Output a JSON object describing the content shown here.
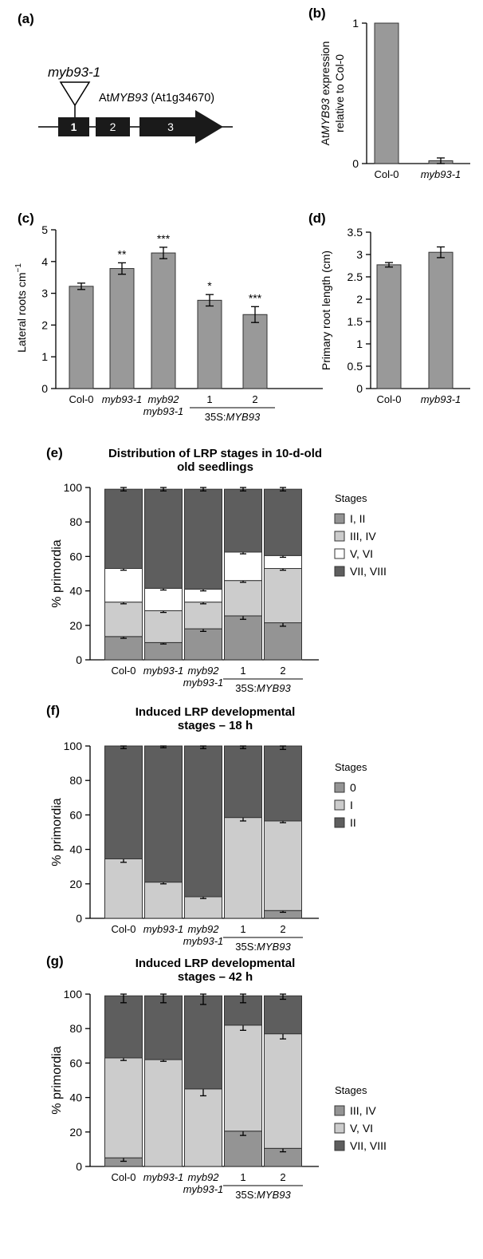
{
  "colors": {
    "bar": "#999999",
    "stack": [
      "#949494",
      "#cccccc",
      "#ffffff",
      "#5e5e5e"
    ],
    "stackF": [
      "#949494",
      "#cccccc",
      "#5e5e5e"
    ],
    "stackG": [
      "#949494",
      "#cccccc",
      "#5e5e5e"
    ]
  },
  "panel_a": {
    "letter": "(a)",
    "insertion": "myb93-1",
    "gene_prefix": "At",
    "gene_name": "MYB93",
    "gene_id": "(At1g34670)",
    "exon1": "1",
    "exon2": "2",
    "exon3": "3"
  },
  "chart_data": [
    {
      "id": "b",
      "letter": "(b)",
      "type": "bar",
      "categories": [
        "Col-0",
        "myb93-1"
      ],
      "values": [
        1,
        0.02
      ],
      "errors": [
        0,
        0.02
      ],
      "ylim": [
        0,
        1
      ],
      "yticks": [
        "0",
        "1"
      ],
      "ylabel_prefix": "At",
      "ylabel_gene": "MYB93",
      "ylabel_rest": " expression",
      "ylabel_line2": "relative to Col-0"
    },
    {
      "id": "c",
      "letter": "(c)",
      "type": "bar",
      "categories": [
        "Col-0",
        "myb93-1",
        "myb92",
        "1",
        "2"
      ],
      "category_line2": [
        "",
        "",
        "myb93-1",
        "",
        ""
      ],
      "values": [
        3.22,
        3.78,
        4.27,
        2.78,
        2.33
      ],
      "errors": [
        0.1,
        0.18,
        0.18,
        0.18,
        0.25
      ],
      "significance": [
        "",
        "**",
        "***",
        "*",
        "***"
      ],
      "ylim": [
        0,
        5
      ],
      "yticks": [
        "0",
        "1",
        "2",
        "3",
        "4",
        "5"
      ],
      "ylabel": "Lateral roots cm",
      "ylabel_sup": "−1",
      "group_prefix": "35S:",
      "group_gene": "MYB93"
    },
    {
      "id": "d",
      "letter": "(d)",
      "type": "bar",
      "categories": [
        "Col-0",
        "myb93-1"
      ],
      "values": [
        2.77,
        3.05
      ],
      "errors": [
        0.05,
        0.12
      ],
      "ylim": [
        0,
        3.5
      ],
      "yticks": [
        "0",
        "0.5",
        "1",
        "1.5",
        "2",
        "2.5",
        "3",
        "3.5"
      ],
      "ylabel": "Primary root length (cm)"
    },
    {
      "id": "e",
      "letter": "(e)",
      "type": "bar",
      "stacked": true,
      "title": [
        "Distribution of LRP stages in 10-d-old",
        "old seedlings"
      ],
      "ylabel": "% primordia",
      "ylim": [
        0,
        100
      ],
      "yticks": [
        "0",
        "20",
        "40",
        "60",
        "80",
        "100"
      ],
      "categories": [
        "Col-0",
        "myb93-1",
        "myb92",
        "1",
        "2"
      ],
      "category_line2": [
        "",
        "",
        "myb93-1",
        "",
        ""
      ],
      "group_prefix": "35S:",
      "group_gene": "MYB93",
      "legend_title": "Stages",
      "series": [
        {
          "name": "I, II",
          "values": [
            13.5,
            10,
            18,
            25.5,
            21.5
          ],
          "errors": [
            1,
            0.8,
            1.5,
            2,
            2
          ]
        },
        {
          "name": "III, IV",
          "values": [
            20,
            18.5,
            15.5,
            20.5,
            31.5
          ],
          "errors": [
            1,
            1,
            1,
            1,
            1
          ]
        },
        {
          "name": "V, VI",
          "values": [
            19.5,
            13,
            7.5,
            16.5,
            7.5
          ],
          "errors": [
            1,
            1,
            1,
            1,
            1
          ]
        },
        {
          "name": "VII, VIII",
          "values": [
            46,
            57.5,
            58,
            36.5,
            38.5
          ],
          "errors": [
            1,
            1,
            1,
            1,
            1
          ]
        }
      ]
    },
    {
      "id": "f",
      "letter": "(f)",
      "type": "bar",
      "stacked": true,
      "title": [
        "Induced LRP developmental",
        "stages – 18 h"
      ],
      "ylabel": "% primordia",
      "ylim": [
        0,
        100
      ],
      "yticks": [
        "0",
        "20",
        "40",
        "60",
        "80",
        "100"
      ],
      "categories": [
        "Col-0",
        "myb93-1",
        "myb92",
        "1",
        "2"
      ],
      "category_line2": [
        "",
        "",
        "myb93-1",
        "",
        ""
      ],
      "group_prefix": "35S:",
      "group_gene": "MYB93",
      "legend_title": "Stages",
      "series": [
        {
          "name": "0",
          "values": [
            0,
            0,
            0,
            0,
            4.5
          ],
          "errors": [
            0,
            0,
            0,
            0,
            1
          ]
        },
        {
          "name": "I",
          "values": [
            34.5,
            21,
            12.5,
            58.5,
            52
          ],
          "errors": [
            2,
            1,
            1,
            2,
            1
          ]
        },
        {
          "name": "II",
          "values": [
            65.5,
            79,
            87.5,
            41.5,
            43.5
          ],
          "errors": [
            1.5,
            1,
            1.5,
            1.5,
            2
          ]
        }
      ]
    },
    {
      "id": "g",
      "letter": "(g)",
      "type": "bar",
      "stacked": true,
      "title": [
        "Induced LRP developmental",
        "stages – 42 h"
      ],
      "ylabel": "% primordia",
      "ylim": [
        0,
        100
      ],
      "yticks": [
        "0",
        "20",
        "40",
        "60",
        "80",
        "100"
      ],
      "categories": [
        "Col-0",
        "myb93-1",
        "myb92",
        "1",
        "2"
      ],
      "category_line2": [
        "",
        "",
        "myb93-1",
        "",
        ""
      ],
      "group_prefix": "35S:",
      "group_gene": "MYB93",
      "legend_title": "Stages",
      "series": [
        {
          "name": "III, IV",
          "values": [
            5,
            0,
            0,
            20.5,
            10.5
          ],
          "errors": [
            2,
            0,
            0,
            2.5,
            2
          ]
        },
        {
          "name": "V, VI",
          "values": [
            58,
            62,
            45,
            61.5,
            66.5
          ],
          "errors": [
            1.5,
            1,
            4,
            3,
            3
          ]
        },
        {
          "name": "VII, VIII",
          "values": [
            36,
            37,
            54,
            17,
            22
          ],
          "errors": [
            4,
            4,
            5,
            4,
            2
          ]
        }
      ]
    }
  ]
}
